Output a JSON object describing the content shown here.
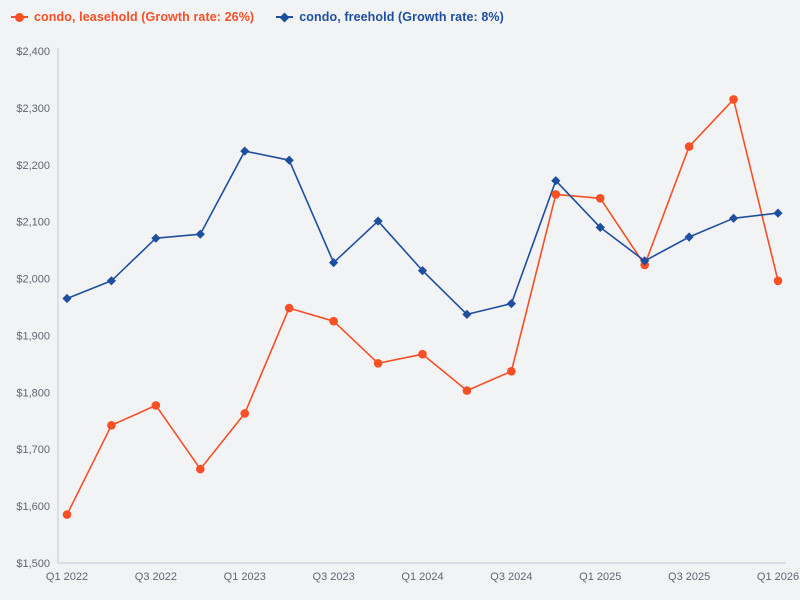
{
  "colors": {
    "leasehold": "#f94f25",
    "freehold": "#1e4f9e",
    "background": "#f2f3f5",
    "axis_line": "#c8d2df",
    "tick_text": "#5d6772"
  },
  "legend": {
    "items": [
      {
        "label": "condo, leasehold (Growth rate: 26%)",
        "marker": "circle"
      },
      {
        "label": "condo, freehold (Growth rate: 8%)",
        "marker": "diamond"
      }
    ]
  },
  "chart_data": {
    "type": "line",
    "title": "",
    "xlabel": "",
    "ylabel": "",
    "categories": [
      "Q1 2022",
      "Q2 2022",
      "Q3 2022",
      "Q4 2022",
      "Q1 2023",
      "Q2 2023",
      "Q3 2023",
      "Q4 2023",
      "Q1 2024",
      "Q2 2024",
      "Q3 2024",
      "Q4 2024",
      "Q1 2025",
      "Q2 2025",
      "Q3 2025",
      "Q4 2025",
      "Q1 2026"
    ],
    "series": [
      {
        "name": "condo, leasehold (Growth rate: 26%)",
        "color": "#f94f25",
        "marker": "circle",
        "values": [
          1585,
          1742,
          1777,
          1665,
          1763,
          1948,
          1925,
          1851,
          1867,
          1803,
          1837,
          2148,
          2141,
          2024,
          2232,
          2315,
          1996
        ]
      },
      {
        "name": "condo, freehold (Growth rate: 8%)",
        "color": "#1e4f9e",
        "marker": "diamond",
        "values": [
          1965,
          1996,
          2071,
          2078,
          2224,
          2208,
          2028,
          2101,
          2014,
          1937,
          1956,
          2172,
          2090,
          2031,
          2073,
          2106,
          2115
        ]
      }
    ],
    "x_tick_labels": [
      "Q1 2022",
      "Q3 2022",
      "Q1 2023",
      "Q3 2023",
      "Q1 2024",
      "Q3 2024",
      "Q1 2025",
      "Q3 2025",
      "Q1 2026"
    ],
    "y_tick_labels": [
      "$1,500",
      "$1,600",
      "$1,700",
      "$1,800",
      "$1,900",
      "$2,000",
      "$2,100",
      "$2,200",
      "$2,300",
      "$2,400"
    ],
    "ylim": [
      1500,
      2400
    ],
    "y_tick_step": 100,
    "grid": "off",
    "legend_position": "top-left"
  }
}
